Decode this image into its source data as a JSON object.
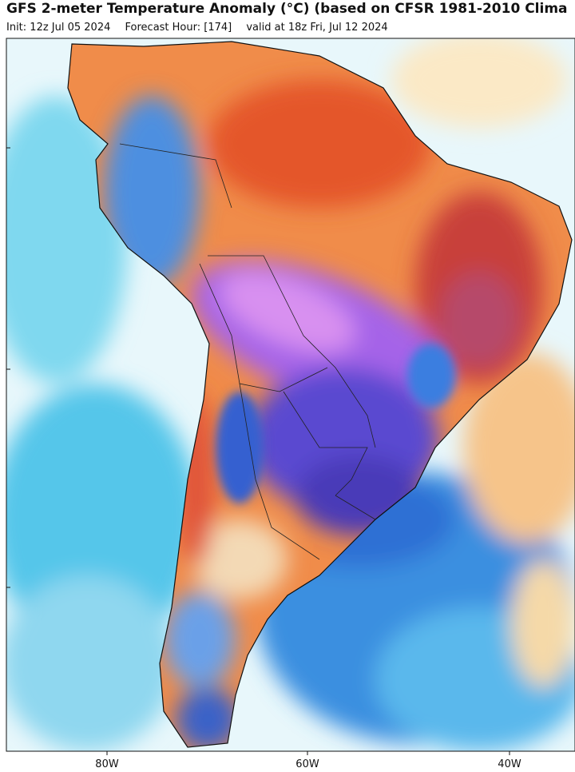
{
  "header": {
    "title": "GFS 2-meter Temperature Anomaly (°C) (based on CFSR 1981-2010 Clima",
    "subtitle": [
      "Init: 12z Jul 05 2024",
      "Forecast Hour: [174]",
      "valid at 18z Fri, Jul 12 2024"
    ]
  },
  "map": {
    "lon_labels": [
      "80W",
      "60W",
      "40W"
    ]
  }
}
